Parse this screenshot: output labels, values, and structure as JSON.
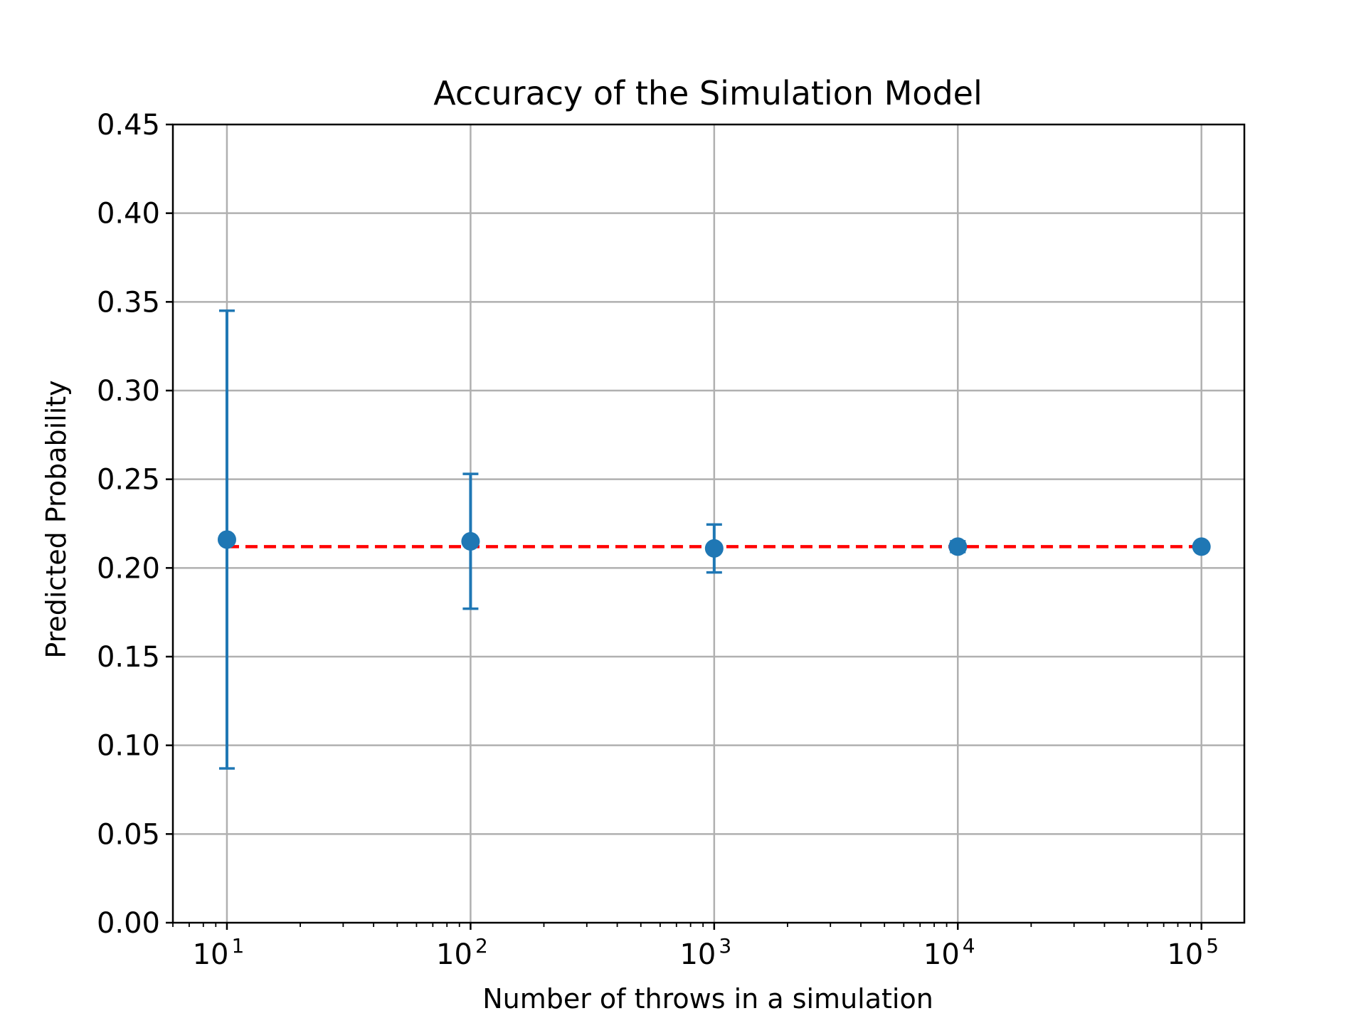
{
  "chart_data": {
    "type": "scatter",
    "title": "Accuracy of the Simulation Model",
    "xlabel": "Number of throws in a simulation",
    "ylabel": "Predicted Probability",
    "x_scale": "log",
    "xlim": [
      6,
      150000
    ],
    "ylim": [
      0,
      0.45
    ],
    "grid": true,
    "x_ticks": [
      {
        "base": "10",
        "exp": "1",
        "value": 10
      },
      {
        "base": "10",
        "exp": "2",
        "value": 100
      },
      {
        "base": "10",
        "exp": "3",
        "value": 1000
      },
      {
        "base": "10",
        "exp": "4",
        "value": 10000
      },
      {
        "base": "10",
        "exp": "5",
        "value": 100000
      }
    ],
    "y_ticks": [
      "0.00",
      "0.05",
      "0.10",
      "0.15",
      "0.20",
      "0.25",
      "0.30",
      "0.35",
      "0.40",
      "0.45"
    ],
    "series": [
      {
        "kind": "errorbar",
        "color": "#1f77b4",
        "points": [
          {
            "x": 10,
            "y": 0.216,
            "yerr": 0.129
          },
          {
            "x": 100,
            "y": 0.215,
            "yerr": 0.038
          },
          {
            "x": 1000,
            "y": 0.211,
            "yerr": 0.0135
          },
          {
            "x": 10000,
            "y": 0.212,
            "yerr": 0.003
          },
          {
            "x": 100000,
            "y": 0.212,
            "yerr": 0.001
          }
        ]
      },
      {
        "kind": "reference-line",
        "color": "#ff0000",
        "style": "dashed",
        "y": 0.212,
        "x_range": [
          10,
          100000
        ]
      }
    ]
  }
}
